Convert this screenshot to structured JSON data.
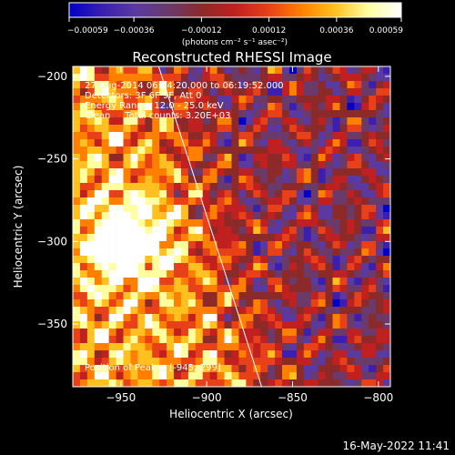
{
  "chart_data": {
    "type": "heatmap",
    "title": "Reconstructed RHESSI Image",
    "xlabel": "Heliocentric X (arcsec)",
    "ylabel": "Heliocentric Y (arcsec)",
    "xlim": [
      -978,
      -793
    ],
    "ylim": [
      -388,
      -194
    ],
    "x_ticks": [
      -950,
      -900,
      -850,
      -800
    ],
    "x_tick_labels": [
      "−950",
      "−900",
      "−850",
      "−800"
    ],
    "y_ticks": [
      -200,
      -250,
      -300,
      -350
    ],
    "y_tick_labels": [
      "−200",
      "−250",
      "−300",
      "−350"
    ],
    "colorbar": {
      "min": -0.00059,
      "max": 0.00059,
      "ticks": [
        -0.00059,
        -0.00036,
        -0.00012,
        0.00012,
        0.00036,
        0.00059
      ],
      "tick_labels": [
        "−0.00059",
        "−0.00036",
        "−0.00012",
        "0.00012",
        "0.00036",
        "0.00059"
      ],
      "units_label": "(photons cm⁻² s⁻¹ asec⁻²)"
    },
    "annotations": {
      "time_range": "27-Aug-2014 06:14:20.000 to 06:19:52.000",
      "detectors": "Detectors: 3F 6F 9F, Att 0",
      "energy_range": "Energy Range: 12.0 - 25.0 keV",
      "method_counts": "Clean     Total counts: 3.20E+03",
      "peak_position": "Position of Peak = [-945,-299]"
    },
    "peak": {
      "x": -945,
      "y": -299
    },
    "limb_line": [
      {
        "x": -928,
        "y": -194
      },
      {
        "x": -868,
        "y": -388
      }
    ],
    "grid": false,
    "colormap": [
      "#0000c8",
      "#3a1fb0",
      "#5a3aa0",
      "#6a3a6a",
      "#8c2a2a",
      "#c02020",
      "#e84018",
      "#ff8000",
      "#ffc020",
      "#ffffa0",
      "#ffffff"
    ]
  },
  "timestamp": "16-May-2022 11:41"
}
